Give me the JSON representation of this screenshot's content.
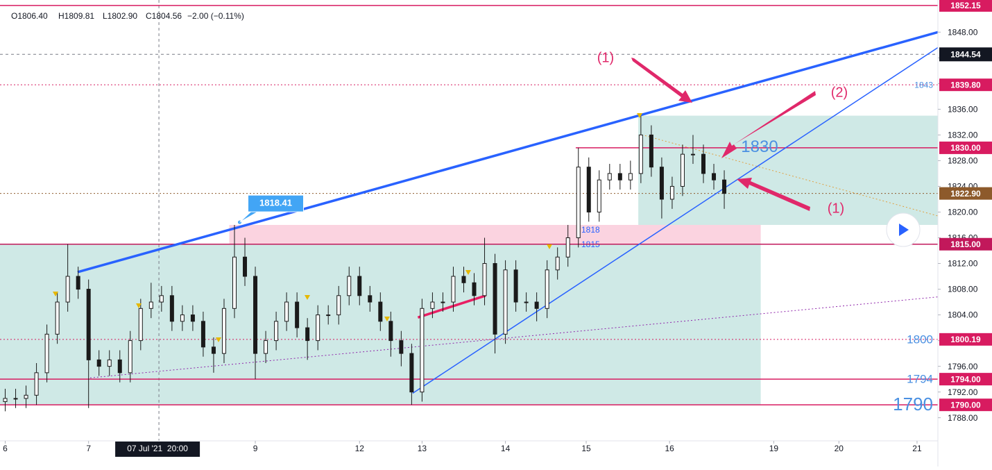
{
  "chart_data": {
    "type": "candlestick",
    "ohlc_header": [
      "O1806.40",
      "H1809.81",
      "L1802.90",
      "C1804.56",
      "−2.00 (−0.11%)"
    ],
    "xlim": [
      0,
      180
    ],
    "ylim": [
      1784.4,
      1853
    ],
    "xticks": [
      {
        "value": 1,
        "label": "6"
      },
      {
        "value": 17,
        "label": "7"
      },
      {
        "value": 49,
        "label": "9"
      },
      {
        "value": 69,
        "label": "12"
      },
      {
        "value": 81,
        "label": "13"
      },
      {
        "value": 97,
        "label": "14"
      },
      {
        "value": 112.5,
        "label": "15"
      },
      {
        "value": 128.5,
        "label": "16"
      },
      {
        "value": 148.5,
        "label": "19"
      },
      {
        "value": 161,
        "label": "20"
      },
      {
        "value": 176,
        "label": "21"
      }
    ],
    "yticks": [
      {
        "value": 1788,
        "label": "1788.00"
      },
      {
        "value": 1792,
        "label": "1792.00"
      },
      {
        "value": 1796,
        "label": "1796.00"
      },
      {
        "value": 1800,
        "label": "1800.00"
      },
      {
        "value": 1804,
        "label": "1804.00"
      },
      {
        "value": 1808,
        "label": "1808.00"
      },
      {
        "value": 1812,
        "label": "1812.00"
      },
      {
        "value": 1816,
        "label": "1816.00"
      },
      {
        "value": 1820,
        "label": "1820.00"
      },
      {
        "value": 1824,
        "label": "1824.00"
      },
      {
        "value": 1828,
        "label": "1828.00"
      },
      {
        "value": 1832,
        "label": "1832.00"
      },
      {
        "value": 1836,
        "label": "1836.00"
      },
      {
        "value": 1840,
        "label": "1840.00"
      },
      {
        "value": 1844,
        "label": "1844.00"
      },
      {
        "value": 1848,
        "label": "1848.00"
      }
    ],
    "grid": false,
    "crosshair": {
      "x": 30.5,
      "x_label": "07 Jul '21  20:00",
      "y": 1844.54,
      "y_label": "1844.54"
    },
    "candle_color": "#1a1a1a",
    "candles": {
      "x": [
        1,
        3,
        5,
        7,
        9,
        11,
        13,
        15,
        17,
        19,
        21,
        23,
        25,
        27,
        29,
        31,
        33,
        35,
        37,
        39,
        41,
        43,
        45,
        47,
        49,
        51,
        53,
        55,
        57,
        59,
        61,
        63,
        65,
        67,
        69,
        71,
        73,
        75,
        77,
        79,
        81,
        83,
        85,
        87,
        89,
        91,
        93,
        95,
        97,
        99,
        101,
        103,
        105,
        107,
        109,
        111,
        113,
        115,
        117,
        119,
        121,
        123,
        125,
        127,
        129,
        131,
        133,
        135,
        137,
        139
      ],
      "open": [
        1790.5,
        1791,
        1791,
        1791.5,
        1795,
        1801,
        1806,
        1810,
        1808,
        1797,
        1796,
        1797,
        1795,
        1800,
        1805,
        1806,
        1807,
        1803,
        1804,
        1803,
        1799,
        1798,
        1805,
        1813,
        1810,
        1798,
        1800,
        1803,
        1806,
        1802,
        1800,
        1804,
        1804,
        1807,
        1810,
        1807,
        1806,
        1803,
        1800,
        1798,
        1792,
        1805,
        1806,
        1806,
        1810,
        1809,
        1807,
        1812,
        1801,
        1811,
        1806,
        1806,
        1805,
        1811,
        1813,
        1816,
        1827,
        1820,
        1825,
        1826,
        1825,
        1826,
        1832,
        1827,
        1822,
        1824,
        1829,
        1829,
        1826,
        1825
      ],
      "high": [
        1792.5,
        1792.5,
        1793,
        1796.5,
        1802.5,
        1807.5,
        1815,
        1811.5,
        1809.5,
        1798.5,
        1798.5,
        1798.5,
        1801.5,
        1806.5,
        1809,
        1808.5,
        1808.5,
        1805.5,
        1805.5,
        1804.5,
        1800.5,
        1806.5,
        1818,
        1816,
        1811.5,
        1801.5,
        1804.5,
        1807.5,
        1807.5,
        1803.5,
        1805.5,
        1805.5,
        1808.5,
        1811.5,
        1811.5,
        1808.5,
        1807.5,
        1804.5,
        1801.5,
        1799.5,
        1806.5,
        1807.5,
        1807.5,
        1811.5,
        1811.5,
        1810.5,
        1816,
        1813.5,
        1812.5,
        1812.5,
        1807.5,
        1807.5,
        1812.5,
        1814.5,
        1818,
        1830,
        1828.5,
        1826.5,
        1827.5,
        1827.5,
        1828,
        1835,
        1833.5,
        1828.5,
        1825.5,
        1830.5,
        1832,
        1830.5,
        1827.5,
        1826.5
      ],
      "low": [
        1789,
        1789.5,
        1789.5,
        1790,
        1793.5,
        1799.5,
        1804.5,
        1806.5,
        1789.5,
        1794.5,
        1794.5,
        1793.5,
        1793.5,
        1798.5,
        1803.5,
        1804.5,
        1801.5,
        1801.5,
        1801.5,
        1797.5,
        1795,
        1796.5,
        1803.5,
        1808.5,
        1794,
        1796.5,
        1798.5,
        1801.5,
        1800.5,
        1797,
        1798.5,
        1802.5,
        1802.5,
        1805.5,
        1805.5,
        1804.5,
        1801.5,
        1797.5,
        1796,
        1790,
        1790.5,
        1803.5,
        1804.5,
        1804.5,
        1807.5,
        1805.5,
        1805.5,
        1798,
        1799.5,
        1804.5,
        1804.5,
        1803,
        1803.5,
        1809.5,
        1811.5,
        1814.5,
        1818.5,
        1818.5,
        1823.5,
        1823.5,
        1823.5,
        1824.5,
        1825.5,
        1819,
        1820.5,
        1822.5,
        1827.5,
        1824.5,
        1823.5,
        1820.5
      ],
      "close": [
        1791,
        1791,
        1791.5,
        1795,
        1801,
        1806,
        1810,
        1808,
        1797,
        1796,
        1797,
        1795,
        1800,
        1805,
        1806,
        1807,
        1803,
        1804,
        1803,
        1799,
        1798,
        1805,
        1813,
        1810,
        1798,
        1800,
        1803,
        1806,
        1802,
        1800,
        1804,
        1804,
        1807,
        1810,
        1807,
        1806,
        1803,
        1800,
        1798,
        1792,
        1805,
        1806,
        1806,
        1810,
        1809,
        1807,
        1812,
        1801,
        1811,
        1806,
        1806,
        1805,
        1811,
        1813,
        1816,
        1827,
        1820,
        1825,
        1826,
        1825,
        1826,
        1832,
        1827,
        1822,
        1824,
        1829,
        1829,
        1826,
        1825,
        1822.9
      ]
    },
    "zones": [
      {
        "top": 1815,
        "bottom": 1790,
        "start": 0,
        "end": 146,
        "color": "#cfe9e6"
      },
      {
        "top": 1818,
        "bottom": 1815,
        "start": 44,
        "end": 146,
        "color": "#fbd3e0",
        "labels": [
          "1818",
          "1815"
        ]
      },
      {
        "top": 1835,
        "bottom": 1818,
        "start": 122.5,
        "end": 180,
        "color": "#cfe9e6"
      }
    ],
    "levels": [
      {
        "value": 1852.15,
        "label": "1852.15",
        "style": "solid",
        "start": 0,
        "color": "#d81b60"
      },
      {
        "value": 1839.8,
        "label": "1839.80",
        "style": "dotted",
        "start": 0,
        "color": "#d81b60",
        "note": "1843"
      },
      {
        "value": 1830,
        "label": "1830.00",
        "style": "solid",
        "start": 110.5,
        "color": "#d81b60",
        "note": "1830"
      },
      {
        "value": 1822.9,
        "label": "1822.90",
        "style": "dotted",
        "start": 0,
        "color": "#8d5a2b"
      },
      {
        "value": 1815,
        "label": "1815.00",
        "style": "solid",
        "start": 0,
        "color": "#c2185b"
      },
      {
        "value": 1800.19,
        "label": "1800.19",
        "style": "dotted",
        "start": 0,
        "color": "#d81b60",
        "note": "1800"
      },
      {
        "value": 1794,
        "label": "1794.00",
        "style": "solid",
        "start": 0,
        "color": "#d81b60",
        "note": "1794"
      },
      {
        "value": 1790,
        "label": "1790.00",
        "style": "solid",
        "start": 0,
        "color": "#d81b60",
        "note": "1790"
      }
    ],
    "trendlines": [
      {
        "x": [
          14.9,
          180
        ],
        "y": [
          1810.66,
          1848
        ],
        "style": "thick",
        "color": "#2962ff"
      },
      {
        "x": [
          79.2,
          180
        ],
        "y": [
          1791.8,
          1845.6
        ],
        "style": "thin",
        "color": "#2962ff"
      },
      {
        "x": [
          17.3,
          180
        ],
        "y": [
          1794.2,
          1806.8
        ],
        "style": "dotted",
        "color": "#8e24aa"
      },
      {
        "x": [
          80.2,
          93.2
        ],
        "y": [
          1803.6,
          1807
        ],
        "style": "thick",
        "color": "#e91e63"
      },
      {
        "x": [
          123.8,
          180
        ],
        "y": [
          1831.9,
          1819.4
        ],
        "style": "dotted-thin",
        "color": "#e0a040"
      }
    ],
    "callout": {
      "value": 1818.41,
      "x": 46
    },
    "annotations": [
      "(1)",
      "(2)",
      "(1)"
    ]
  }
}
